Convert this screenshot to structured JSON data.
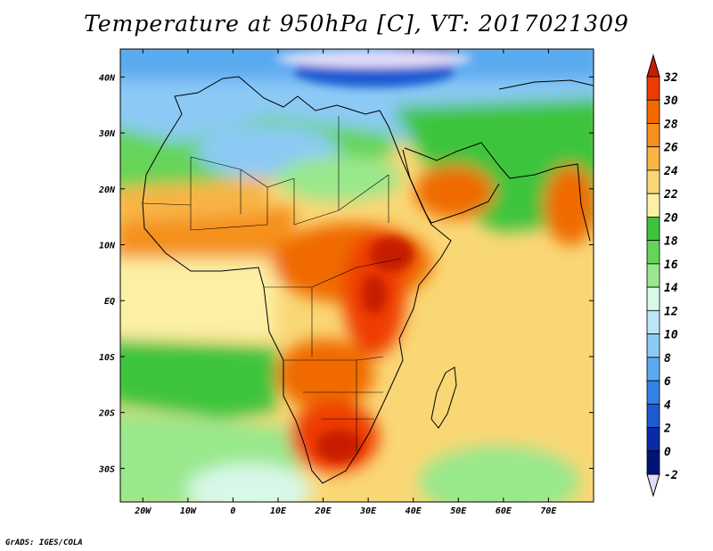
{
  "title": "Temperature at 950hPa [C], VT: 2017021309",
  "footer": "GrADS: IGES/COLA",
  "map": {
    "lon_range": [
      -25,
      80
    ],
    "lat_range": [
      -36,
      45
    ],
    "lon_ticks": [
      {
        "value": -20,
        "label": "20W"
      },
      {
        "value": -10,
        "label": "10W"
      },
      {
        "value": 0,
        "label": "0"
      },
      {
        "value": 10,
        "label": "10E"
      },
      {
        "value": 20,
        "label": "20E"
      },
      {
        "value": 30,
        "label": "30E"
      },
      {
        "value": 40,
        "label": "40E"
      },
      {
        "value": 50,
        "label": "50E"
      },
      {
        "value": 60,
        "label": "60E"
      },
      {
        "value": 70,
        "label": "70E"
      }
    ],
    "lat_ticks": [
      {
        "value": 40,
        "label": "40N"
      },
      {
        "value": 30,
        "label": "30N"
      },
      {
        "value": 20,
        "label": "20N"
      },
      {
        "value": 10,
        "label": "10N"
      },
      {
        "value": 0,
        "label": "EQ"
      },
      {
        "value": -10,
        "label": "10S"
      },
      {
        "value": -20,
        "label": "20S"
      },
      {
        "value": -30,
        "label": "30S"
      }
    ]
  },
  "colorbar": {
    "labels": [
      "32",
      "30",
      "28",
      "26",
      "24",
      "22",
      "20",
      "18",
      "16",
      "14",
      "12",
      "10",
      "8",
      "6",
      "4",
      "2",
      "0",
      "-2"
    ],
    "colors": [
      "#c81e00",
      "#ee3c00",
      "#f06a00",
      "#f5901e",
      "#f8b445",
      "#fad775",
      "#fcf0a5",
      "#3ec43c",
      "#65d458",
      "#9ae88c",
      "#d8f8e8",
      "#bce6f8",
      "#8ccaf5",
      "#5aaaf0",
      "#3282e6",
      "#1e5ad2",
      "#0a2aa8",
      "#001478"
    ],
    "top_color": "#c81e00",
    "bottom_color": "#e0dcf8"
  }
}
